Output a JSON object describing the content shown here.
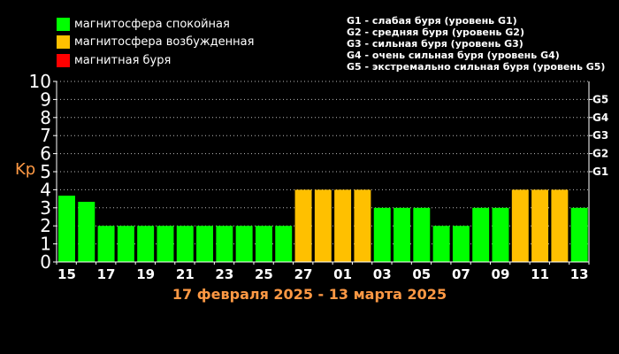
{
  "legend": [
    {
      "label": "магнитосфера спокойная",
      "color": "#00ff00"
    },
    {
      "label": "магнитосфера возбужденная",
      "color": "#ffc000"
    },
    {
      "label": "магнитная буря",
      "color": "#ff0000"
    }
  ],
  "storm_legend": [
    "G1 - слабая буря (уровень G1)",
    "G2 - средняя буря (уровень G2)",
    "G3 - сильная буря (уровень G3)",
    "G4 - очень сильная буря (уровень G4)",
    "G5 - экстремально сильная буря (уровень G5)"
  ],
  "chart_data": {
    "type": "bar",
    "title": "17 февраля 2025 - 13 марта 2025",
    "ylabel": "Kp",
    "ylim": [
      0,
      10
    ],
    "yticks": [
      "0",
      "1",
      "2",
      "3",
      "4",
      "5",
      "6",
      "7",
      "8",
      "9",
      "10"
    ],
    "right_ticks": [
      {
        "label": "G1",
        "value": 5
      },
      {
        "label": "G2",
        "value": 6
      },
      {
        "label": "G3",
        "value": 7
      },
      {
        "label": "G4",
        "value": 8
      },
      {
        "label": "G5",
        "value": 9
      }
    ],
    "x_tick_labels": [
      {
        "label": "15",
        "index": 0
      },
      {
        "label": "17",
        "index": 2
      },
      {
        "label": "19",
        "index": 4
      },
      {
        "label": "21",
        "index": 6
      },
      {
        "label": "23",
        "index": 8
      },
      {
        "label": "25",
        "index": 10
      },
      {
        "label": "27",
        "index": 12
      },
      {
        "label": "01",
        "index": 14
      },
      {
        "label": "03",
        "index": 16
      },
      {
        "label": "05",
        "index": 18
      },
      {
        "label": "07",
        "index": 20
      },
      {
        "label": "09",
        "index": 22
      },
      {
        "label": "11",
        "index": 24
      },
      {
        "label": "13",
        "index": 26
      }
    ],
    "grid": true,
    "levels": {
      "quiet": "#00ff00",
      "active": "#ffc000"
    },
    "values": [
      3.67,
      3.33,
      2,
      2,
      2,
      2,
      2,
      2,
      2,
      2,
      2,
      2,
      4,
      4,
      4,
      4,
      3,
      3,
      3,
      2,
      2,
      3,
      3,
      4,
      4,
      4,
      3
    ],
    "bar_levels": [
      "quiet",
      "quiet",
      "quiet",
      "quiet",
      "quiet",
      "quiet",
      "quiet",
      "quiet",
      "quiet",
      "quiet",
      "quiet",
      "quiet",
      "active",
      "active",
      "active",
      "active",
      "quiet",
      "quiet",
      "quiet",
      "quiet",
      "quiet",
      "quiet",
      "quiet",
      "active",
      "active",
      "active",
      "quiet"
    ]
  }
}
